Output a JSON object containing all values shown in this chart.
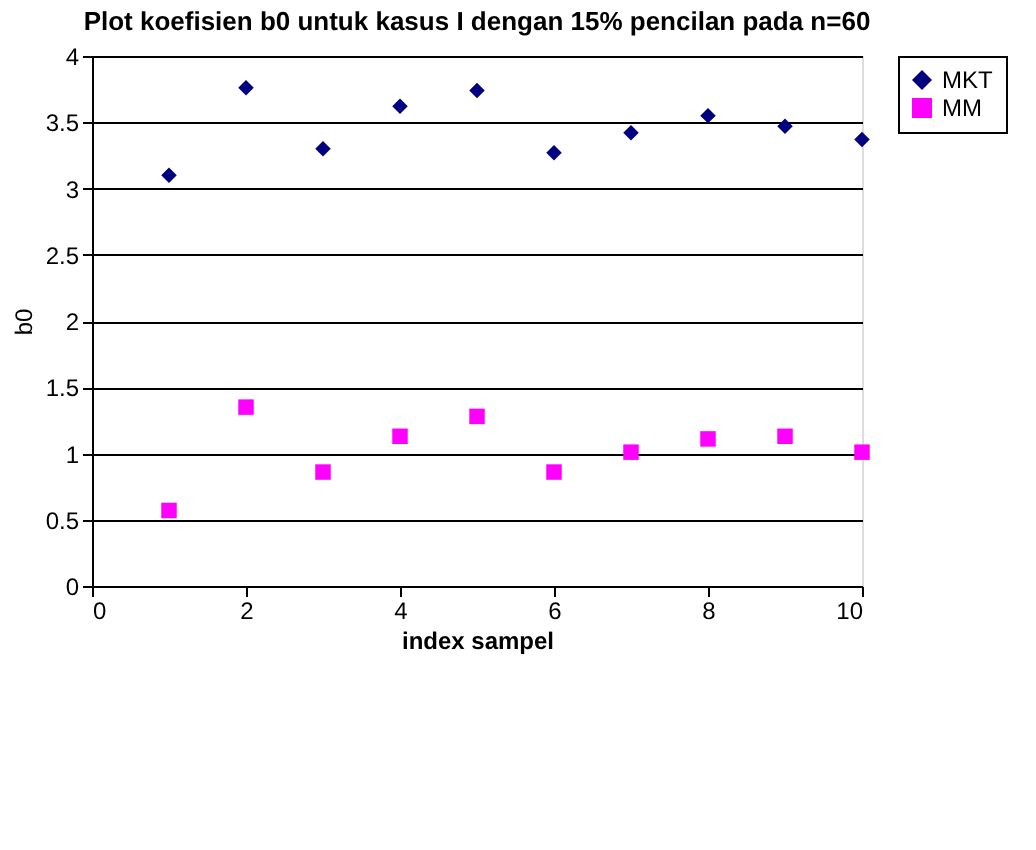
{
  "chart_data": {
    "type": "scatter",
    "title": "Plot koefisien b0 untuk kasus I dengan 15% pencilan pada n=60",
    "xlabel": "index sampel",
    "ylabel": "b0",
    "x": [
      1,
      2,
      3,
      4,
      5,
      6,
      7,
      8,
      9,
      10
    ],
    "series": [
      {
        "name": "MKT",
        "color": "#000080",
        "marker": "diamond",
        "values": [
          3.1,
          3.76,
          3.3,
          3.62,
          3.74,
          3.27,
          3.42,
          3.55,
          3.47,
          3.37
        ]
      },
      {
        "name": "MM",
        "color": "#ff00ff",
        "marker": "square",
        "values": [
          0.57,
          1.35,
          0.86,
          1.13,
          1.28,
          0.86,
          1.01,
          1.11,
          1.13,
          1.01
        ]
      }
    ],
    "xlim": [
      0,
      10
    ],
    "xticks": [
      0,
      2,
      4,
      6,
      8,
      10
    ],
    "ylim": [
      0,
      4
    ],
    "yticks": [
      0,
      0.5,
      1,
      1.5,
      2,
      2.5,
      3,
      3.5,
      4
    ],
    "grid": "y",
    "legend": "right"
  }
}
